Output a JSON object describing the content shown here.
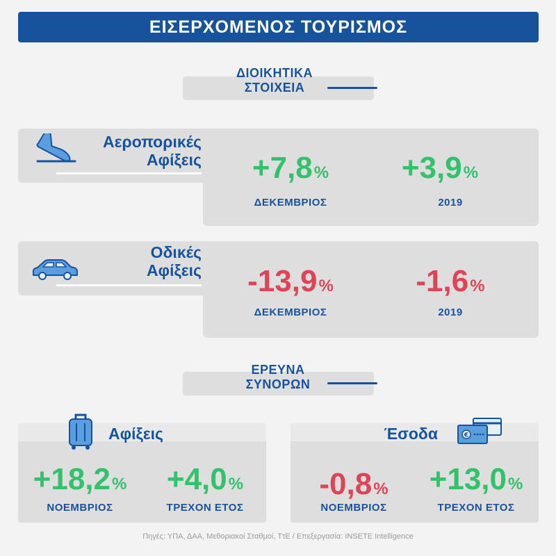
{
  "header": {
    "title": "ΕΙΣΕΡΧΟΜΕΝΟΣ ΤΟΥΡΙΣΜΟΣ"
  },
  "admin_section": {
    "line1": "ΔΙΟΙΚΗΤΙΚΑ",
    "line2": "ΣΤΟΙΧΕΙΑ"
  },
  "air": {
    "icon": "airplane-landing-icon",
    "label_line1": "Αεροπορικές",
    "label_line2": "Αφίξεις",
    "value1": "+7,8",
    "value1_unit": "%",
    "value1_label": "ΔΕΚΕΜΒΡΙΟΣ",
    "value2": "+3,9",
    "value2_unit": "%",
    "value2_label": "2019"
  },
  "road": {
    "icon": "car-icon",
    "label_line1": "Οδικές",
    "label_line2": "Αφίξεις",
    "value1": "-13,9",
    "value1_unit": "%",
    "value1_label": "ΔΕΚΕΜΒΡΙΟΣ",
    "value2": "-1,6",
    "value2_unit": "%",
    "value2_label": "2019"
  },
  "border_section": {
    "line1": "ΕΡΕΥΝΑ",
    "line2": "ΣΥΝΟΡΩΝ"
  },
  "arrivals_card": {
    "icon": "suitcase-icon",
    "title": "Αφίξεις",
    "value1": "+18,2",
    "value1_unit": "%",
    "value1_label": "ΝΟΕΜΒΡΙΟΣ",
    "value2": "+4,0",
    "value2_unit": "%",
    "value2_label": "ΤΡΕΧΟΝ ΕΤΟΣ"
  },
  "revenue_card": {
    "icon": "money-card-icon",
    "title": "Έσοδα",
    "value1": "-0,8",
    "value1_unit": "%",
    "value1_label": "ΝΟΕΜΒΡΙΟΣ",
    "value2": "+13,0",
    "value2_unit": "%",
    "value2_label": "ΤΡΕΧΟΝ ΕΤΟΣ"
  },
  "footer": {
    "source": "Πηγές: ΥΠΑ, ΔΑΑ, Μεθοριακοί Σταθμοί, ΤτΕ / Επεξεργασία: INSETE Intelligence"
  },
  "colors": {
    "brand_blue": "#17539d",
    "positive": "#34c16c",
    "negative": "#e04256"
  }
}
